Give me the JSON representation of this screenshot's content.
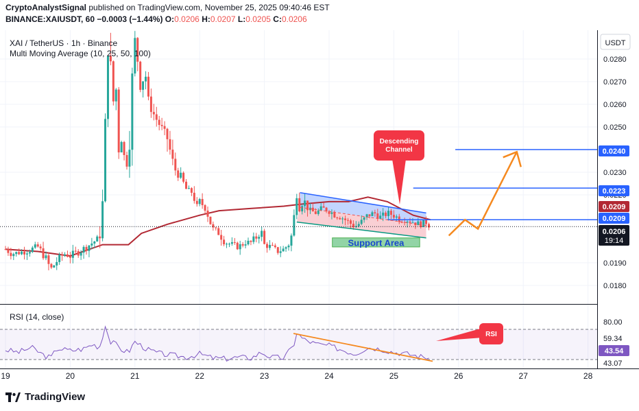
{
  "header": {
    "publisher": "CryptoAnalystSignal",
    "line1_rest": " published on TradingView.com, November 25, 2025 09:40:46 EST",
    "symbol": "BINANCE:XAIUSDT, 60",
    "change": "−0.0003 (−1.44%)",
    "o_label": "O:",
    "o": "0.0206",
    "h_label": "H:",
    "h": "0.0207",
    "l_label": "L:",
    "l": "0.0205",
    "c_label": "C:",
    "c": "0.0206"
  },
  "legend": {
    "title": "XAI / TetherUS · 1h · Binance",
    "indicator": "Multi Moving Average (10, 25, 50, 100)",
    "rsi": "RSI (14, close)"
  },
  "currency_button": "USDT",
  "annotations": {
    "descending_channel": [
      "Descending",
      "Channel"
    ],
    "support_area": "Support Area",
    "rsi_badge": "RSI"
  },
  "price_badges": {
    "level_1": "0.0240",
    "level_2": "0.0223",
    "ma": "0.0209",
    "level_3": "0.0209",
    "last": "0.0206",
    "countdown": "19:14"
  },
  "rsi_badges": {
    "upper": "80.00",
    "rsi_ma": "59.34",
    "rsi_value": "43.54",
    "lower": "43.07"
  },
  "footer": {
    "logo": "TradingView"
  },
  "colors": {
    "up": "#26a69a",
    "down": "#ef5350",
    "ma": "#b22833",
    "level_line": "#2962ff",
    "channel_fill": "#8fb3ff",
    "support_fill": "#77c990",
    "forecast": "#f5891f",
    "rsi_line": "#7e57c2"
  },
  "chart_data": {
    "type": "candlestick",
    "title": "XAI / TetherUS · 1h · Binance",
    "price_axis": {
      "ticks": [
        "0.0280",
        "0.0270",
        "0.0260",
        "0.0250",
        "0.0230",
        "0.0220",
        "0.0190",
        "0.0180"
      ],
      "range": [
        0.0176,
        0.0292
      ]
    },
    "time_axis": {
      "ticks": [
        "19",
        "20",
        "21",
        "22",
        "23",
        "24",
        "25",
        "26",
        "27",
        "28"
      ]
    },
    "price_path": {
      "description_free_points_day_price": [
        [
          19.0,
          0.0196
        ],
        [
          19.1,
          0.0194
        ],
        [
          19.3,
          0.0195
        ],
        [
          19.5,
          0.0197
        ],
        [
          19.6,
          0.0193
        ],
        [
          19.7,
          0.0187
        ],
        [
          19.8,
          0.0191
        ],
        [
          19.9,
          0.0194
        ],
        [
          20.0,
          0.0193
        ],
        [
          20.2,
          0.0196
        ],
        [
          20.35,
          0.0199
        ],
        [
          20.45,
          0.0201
        ],
        [
          20.5,
          0.0216
        ],
        [
          20.53,
          0.023
        ],
        [
          20.56,
          0.0275
        ],
        [
          20.6,
          0.0292
        ],
        [
          20.65,
          0.0256
        ],
        [
          20.7,
          0.0272
        ],
        [
          20.75,
          0.024
        ],
        [
          20.8,
          0.0246
        ],
        [
          20.85,
          0.0232
        ],
        [
          20.9,
          0.0236
        ],
        [
          20.95,
          0.0268
        ],
        [
          21.0,
          0.0288
        ],
        [
          21.05,
          0.0278
        ],
        [
          21.1,
          0.0265
        ],
        [
          21.15,
          0.0278
        ],
        [
          21.2,
          0.0262
        ],
        [
          21.3,
          0.0255
        ],
        [
          21.4,
          0.025
        ],
        [
          21.5,
          0.0245
        ],
        [
          21.6,
          0.0232
        ],
        [
          21.7,
          0.0228
        ],
        [
          21.8,
          0.0222
        ],
        [
          21.9,
          0.0221
        ],
        [
          21.95,
          0.0214
        ],
        [
          22.0,
          0.0217
        ],
        [
          22.1,
          0.0214
        ],
        [
          22.2,
          0.0205
        ],
        [
          22.3,
          0.0203
        ],
        [
          22.4,
          0.0199
        ],
        [
          22.5,
          0.0198
        ],
        [
          22.6,
          0.0197
        ],
        [
          22.7,
          0.0199
        ],
        [
          22.8,
          0.0199
        ],
        [
          22.9,
          0.0202
        ],
        [
          22.95,
          0.0204
        ],
        [
          23.0,
          0.0198
        ],
        [
          23.1,
          0.0197
        ],
        [
          23.2,
          0.0195
        ],
        [
          23.3,
          0.0196
        ],
        [
          23.4,
          0.0199
        ],
        [
          23.45,
          0.0207
        ],
        [
          23.48,
          0.0218
        ],
        [
          23.5,
          0.0221
        ],
        [
          23.55,
          0.0214
        ],
        [
          23.6,
          0.0218
        ],
        [
          23.7,
          0.0213
        ],
        [
          23.8,
          0.0212
        ],
        [
          23.9,
          0.0214
        ],
        [
          24.0,
          0.0213
        ],
        [
          24.1,
          0.0211
        ],
        [
          24.2,
          0.021
        ],
        [
          24.3,
          0.0208
        ],
        [
          24.4,
          0.0206
        ],
        [
          24.5,
          0.0208
        ],
        [
          24.6,
          0.0211
        ],
        [
          24.7,
          0.0212
        ],
        [
          24.8,
          0.021
        ],
        [
          24.9,
          0.0212
        ],
        [
          25.0,
          0.0211
        ],
        [
          25.1,
          0.0209
        ],
        [
          25.2,
          0.0209
        ],
        [
          25.3,
          0.0208
        ],
        [
          25.4,
          0.0207
        ],
        [
          25.5,
          0.0208
        ],
        [
          25.57,
          0.0206
        ]
      ]
    },
    "moving_average_100": [
      [
        19.0,
        0.0196
      ],
      [
        19.5,
        0.0195
      ],
      [
        20.0,
        0.0193
      ],
      [
        20.5,
        0.0198
      ],
      [
        20.9,
        0.0198
      ],
      [
        21.1,
        0.0203
      ],
      [
        21.5,
        0.0207
      ],
      [
        22.0,
        0.0211
      ],
      [
        22.3,
        0.0213
      ],
      [
        22.8,
        0.0214
      ],
      [
        23.3,
        0.0215
      ],
      [
        23.6,
        0.0216
      ],
      [
        24.0,
        0.0217
      ],
      [
        24.3,
        0.0217
      ],
      [
        24.6,
        0.0219
      ],
      [
        24.9,
        0.0217
      ],
      [
        25.1,
        0.0214
      ],
      [
        25.3,
        0.0211
      ],
      [
        25.57,
        0.0209
      ]
    ],
    "levels": [
      0.024,
      0.0223,
      0.0209
    ],
    "forecast_path": [
      [
        25.85,
        0.0202
      ],
      [
        26.1,
        0.0209
      ],
      [
        26.3,
        0.0205
      ],
      [
        26.9,
        0.0239
      ]
    ],
    "channel": {
      "upper": [
        [
          23.55,
          0.0221
        ],
        [
          25.5,
          0.0212
        ]
      ],
      "lower": [
        [
          23.5,
          0.0208
        ],
        [
          25.5,
          0.0201
        ]
      ]
    },
    "support_zone": {
      "day": [
        24.05,
        25.4
      ],
      "price": [
        0.0197,
        0.0201
      ]
    },
    "rsi": {
      "label": "RSI (14, close)",
      "bands": [
        80.0,
        43.07
      ],
      "values_day_rsi": [
        [
          19.0,
          55
        ],
        [
          19.2,
          52
        ],
        [
          19.4,
          58
        ],
        [
          19.6,
          48
        ],
        [
          19.7,
          45
        ],
        [
          19.8,
          57
        ],
        [
          20.0,
          54
        ],
        [
          20.2,
          56
        ],
        [
          20.35,
          62
        ],
        [
          20.45,
          58
        ],
        [
          20.5,
          70
        ],
        [
          20.55,
          90
        ],
        [
          20.6,
          65
        ],
        [
          20.7,
          62
        ],
        [
          20.8,
          55
        ],
        [
          20.9,
          52
        ],
        [
          21.0,
          65
        ],
        [
          21.1,
          60
        ],
        [
          21.2,
          55
        ],
        [
          21.4,
          50
        ],
        [
          21.6,
          48
        ],
        [
          21.8,
          46
        ],
        [
          22.0,
          50
        ],
        [
          22.2,
          45
        ],
        [
          22.4,
          44
        ],
        [
          22.6,
          46
        ],
        [
          22.8,
          45
        ],
        [
          22.95,
          52
        ],
        [
          23.1,
          46
        ],
        [
          23.3,
          45
        ],
        [
          23.45,
          60
        ],
        [
          23.5,
          76
        ],
        [
          23.6,
          68
        ],
        [
          23.8,
          62
        ],
        [
          24.0,
          60
        ],
        [
          24.2,
          55
        ],
        [
          24.4,
          50
        ],
        [
          24.6,
          58
        ],
        [
          24.8,
          56
        ],
        [
          25.0,
          52
        ],
        [
          25.2,
          50
        ],
        [
          25.4,
          47
        ],
        [
          25.57,
          45
        ]
      ],
      "trendline": [
        [
          23.45,
          75
        ],
        [
          25.6,
          41
        ]
      ],
      "current": 43.54,
      "ma": 59.34
    }
  }
}
